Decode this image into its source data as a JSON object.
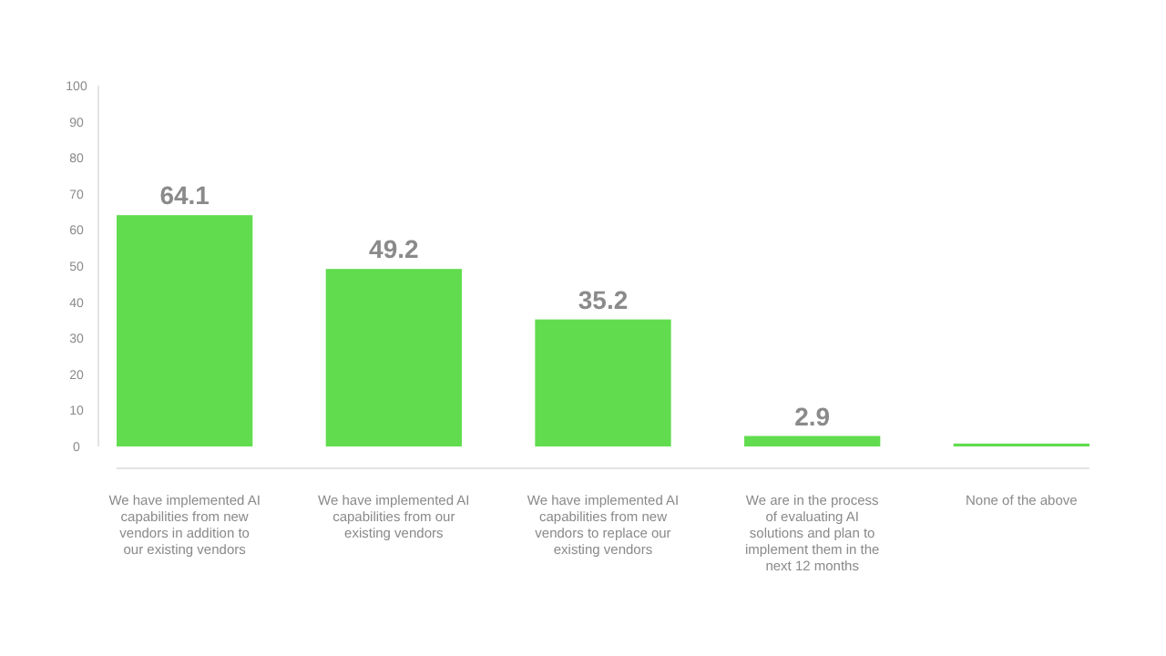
{
  "chart_data": {
    "type": "bar",
    "categories": [
      "We have implemented AI capabilities from new vendors in addition to our existing vendors",
      "We have implemented AI capabilities from our existing vendors",
      "We have implemented AI capabilities from new vendors to replace our existing vendors",
      "We are in the process of evaluating AI solutions and plan to implement them in the next 12 months",
      "None of the above"
    ],
    "values": [
      64.1,
      49.2,
      35.2,
      2.9,
      0.8
    ],
    "value_labels": [
      "64.1",
      "49.2",
      "35.2",
      "2.9",
      null
    ],
    "color": "#62dc4f",
    "ylim": [
      0,
      100
    ],
    "yticks": [
      0,
      10,
      20,
      30,
      40,
      50,
      60,
      70,
      80,
      90,
      100
    ],
    "grid": false
  }
}
